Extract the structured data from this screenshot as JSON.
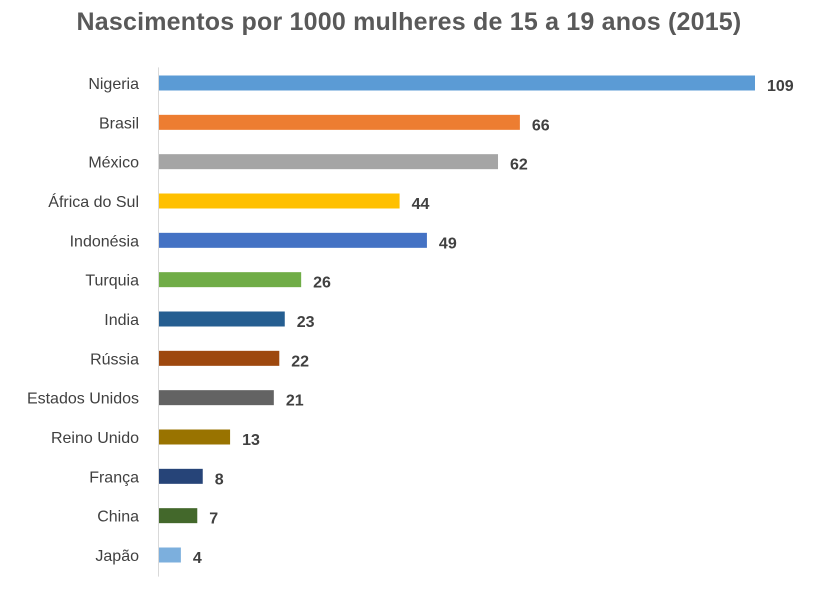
{
  "chart_data": {
    "type": "bar",
    "orientation": "horizontal",
    "title": "Nascimentos por 1000 mulheres de 15 a 19 anos (2015)",
    "categories": [
      "Nigeria",
      "Brasil",
      "México",
      "África do Sul",
      "Indonésia",
      "Turquia",
      "India",
      "Rússia",
      "Estados Unidos",
      "Reino Unido",
      "França",
      "China",
      "Japão"
    ],
    "values": [
      109,
      66,
      62,
      44,
      49,
      26,
      23,
      22,
      21,
      13,
      8,
      7,
      4
    ],
    "value_labels": [
      "109",
      "66",
      "62",
      "44",
      "49",
      "26",
      "23",
      "22",
      "21",
      "13",
      "8",
      "7",
      "4"
    ],
    "colors": [
      "#5B9BD5",
      "#ED7D31",
      "#A5A5A5",
      "#FFC000",
      "#4472C4",
      "#70AD47",
      "#255E91",
      "#9E480E",
      "#636363",
      "#997300",
      "#264478",
      "#43682B",
      "#7CAFDD"
    ],
    "xlim": [
      0,
      109
    ],
    "grid": false,
    "legend": "none",
    "data_labels": "outside-end"
  }
}
